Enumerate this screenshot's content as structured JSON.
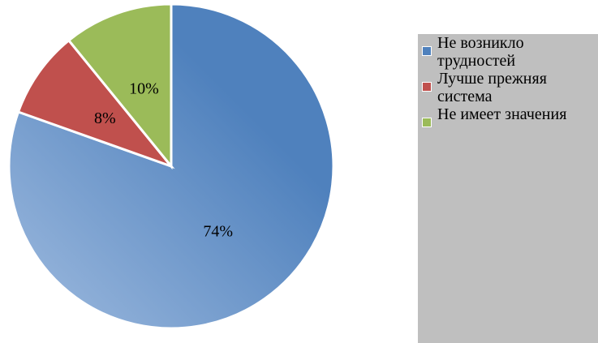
{
  "chart_data": {
    "type": "pie",
    "categories": [
      "Не возникло трудностей",
      "Лучше прежняя система",
      "Не имеет значения"
    ],
    "values": [
      74,
      8,
      10
    ],
    "value_labels": [
      "74%",
      "8%",
      "10%"
    ],
    "colors": [
      "#4f81bd",
      "#c0504d",
      "#9bbb59"
    ],
    "legend": "right"
  }
}
